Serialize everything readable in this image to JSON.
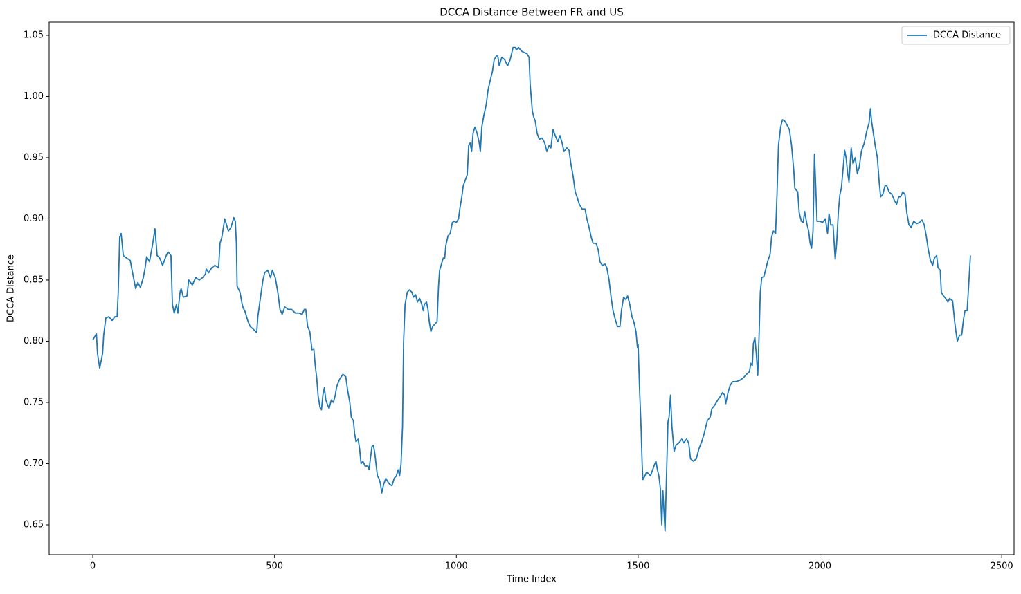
{
  "chart_data": {
    "type": "line",
    "title": "DCCA Distance Between FR and US",
    "x_label": "Time Index",
    "y_label": "DCCA Distance",
    "xlim": [
      -120,
      2534
    ],
    "ylim": [
      0.6257,
      1.0607
    ],
    "xticks": [
      0,
      500,
      1000,
      1500,
      2000,
      2500
    ],
    "yticks": [
      0.65,
      {
        "value": 0.7,
        "label": "0.70"
      },
      0.75,
      {
        "value": 0.8,
        "label": "0.80"
      },
      0.85,
      {
        "value": 0.9,
        "label": "0.90"
      },
      0.95,
      {
        "value": 1.0,
        "label": "1.00"
      },
      1.05
    ],
    "legend": "upper right",
    "x": [
      0,
      6,
      10,
      13,
      19,
      27,
      30,
      36,
      44,
      53,
      61,
      67,
      70,
      74,
      78,
      84,
      93,
      103,
      110,
      118,
      124,
      131,
      139,
      144,
      148,
      156,
      165,
      171,
      177,
      184,
      192,
      202,
      207,
      215,
      219,
      224,
      230,
      234,
      240,
      243,
      249,
      259,
      264,
      274,
      283,
      293,
      302,
      310,
      312,
      319,
      327,
      336,
      346,
      350,
      355,
      363,
      373,
      380,
      388,
      392,
      395,
      397,
      405,
      411,
      414,
      418,
      426,
      433,
      441,
      451,
      454,
      460,
      468,
      473,
      481,
      489,
      494,
      502,
      509,
      515,
      521,
      528,
      538,
      547,
      557,
      567,
      576,
      582,
      586,
      591,
      597,
      603,
      608,
      612,
      616,
      620,
      625,
      629,
      633,
      637,
      641,
      646,
      650,
      656,
      662,
      667,
      671,
      679,
      688,
      696,
      701,
      707,
      711,
      717,
      720,
      724,
      730,
      734,
      738,
      743,
      749,
      757,
      760,
      764,
      768,
      772,
      776,
      779,
      783,
      787,
      791,
      795,
      800,
      806,
      812,
      817,
      823,
      829,
      835,
      840,
      844,
      848,
      852,
      855,
      859,
      865,
      871,
      878,
      882,
      888,
      893,
      899,
      905,
      909,
      912,
      918,
      922,
      926,
      930,
      935,
      941,
      947,
      951,
      954,
      958,
      964,
      968,
      971,
      977,
      983,
      989,
      994,
      1000,
      1006,
      1009,
      1015,
      1019,
      1025,
      1030,
      1034,
      1038,
      1042,
      1046,
      1051,
      1057,
      1063,
      1066,
      1070,
      1076,
      1082,
      1087,
      1093,
      1099,
      1104,
      1110,
      1114,
      1118,
      1125,
      1133,
      1141,
      1148,
      1156,
      1162,
      1165,
      1171,
      1179,
      1186,
      1194,
      1200,
      1203,
      1209,
      1213,
      1217,
      1222,
      1228,
      1236,
      1243,
      1249,
      1255,
      1260,
      1266,
      1272,
      1279,
      1285,
      1291,
      1296,
      1304,
      1310,
      1315,
      1321,
      1327,
      1333,
      1338,
      1346,
      1354,
      1359,
      1365,
      1371,
      1376,
      1384,
      1390,
      1395,
      1401,
      1409,
      1414,
      1420,
      1426,
      1431,
      1437,
      1443,
      1450,
      1454,
      1460,
      1466,
      1471,
      1477,
      1483,
      1488,
      1494,
      1498,
      1500,
      1504,
      1508,
      1511,
      1513,
      1517,
      1523,
      1528,
      1534,
      1540,
      1546,
      1549,
      1553,
      1557,
      1561,
      1565,
      1568,
      1574,
      1578,
      1582,
      1585,
      1589,
      1593,
      1599,
      1604,
      1612,
      1620,
      1625,
      1633,
      1639,
      1644,
      1652,
      1660,
      1667,
      1675,
      1682,
      1690,
      1698,
      1703,
      1711,
      1719,
      1724,
      1732,
      1738,
      1741,
      1747,
      1753,
      1760,
      1768,
      1779,
      1789,
      1798,
      1806,
      1810,
      1814,
      1817,
      1821,
      1825,
      1829,
      1833,
      1836,
      1840,
      1846,
      1852,
      1857,
      1863,
      1867,
      1872,
      1878,
      1882,
      1886,
      1892,
      1897,
      1903,
      1909,
      1916,
      1922,
      1928,
      1931,
      1939,
      1943,
      1949,
      1954,
      1958,
      1964,
      1969,
      1973,
      1977,
      1981,
      1985,
      1988,
      1992,
      2000,
      2007,
      2015,
      2021,
      2025,
      2030,
      2036,
      2042,
      2046,
      2051,
      2055,
      2059,
      2065,
      2068,
      2072,
      2076,
      2080,
      2086,
      2091,
      2097,
      2103,
      2108,
      2114,
      2122,
      2129,
      2135,
      2139,
      2142,
      2146,
      2152,
      2158,
      2163,
      2167,
      2173,
      2179,
      2184,
      2190,
      2198,
      2205,
      2211,
      2217,
      2222,
      2228,
      2234,
      2239,
      2245,
      2251,
      2258,
      2266,
      2274,
      2281,
      2287,
      2293,
      2298,
      2304,
      2310,
      2315,
      2321,
      2325,
      2331,
      2334,
      2340,
      2346,
      2352,
      2357,
      2365,
      2371,
      2374,
      2378,
      2384,
      2390,
      2395,
      2399,
      2405,
      2409,
      2412,
      2414
    ],
    "series": [
      {
        "name": "DCCA Distance",
        "color": "#1f77b4",
        "values": [
          0.801,
          0.804,
          0.806,
          0.79,
          0.778,
          0.79,
          0.805,
          0.819,
          0.82,
          0.817,
          0.82,
          0.82,
          0.84,
          0.885,
          0.888,
          0.87,
          0.868,
          0.866,
          0.855,
          0.843,
          0.848,
          0.844,
          0.852,
          0.86,
          0.869,
          0.865,
          0.88,
          0.892,
          0.87,
          0.868,
          0.862,
          0.87,
          0.873,
          0.87,
          0.83,
          0.823,
          0.83,
          0.823,
          0.84,
          0.843,
          0.836,
          0.837,
          0.85,
          0.846,
          0.852,
          0.85,
          0.852,
          0.855,
          0.859,
          0.856,
          0.86,
          0.862,
          0.86,
          0.88,
          0.885,
          0.9,
          0.89,
          0.893,
          0.901,
          0.898,
          0.88,
          0.845,
          0.84,
          0.83,
          0.827,
          0.825,
          0.817,
          0.812,
          0.81,
          0.807,
          0.82,
          0.833,
          0.85,
          0.856,
          0.858,
          0.852,
          0.858,
          0.852,
          0.84,
          0.826,
          0.822,
          0.828,
          0.826,
          0.826,
          0.823,
          0.823,
          0.822,
          0.826,
          0.826,
          0.812,
          0.808,
          0.793,
          0.794,
          0.78,
          0.77,
          0.755,
          0.746,
          0.744,
          0.756,
          0.762,
          0.752,
          0.748,
          0.745,
          0.752,
          0.75,
          0.756,
          0.763,
          0.769,
          0.773,
          0.771,
          0.76,
          0.75,
          0.738,
          0.735,
          0.725,
          0.718,
          0.72,
          0.712,
          0.7,
          0.702,
          0.698,
          0.698,
          0.695,
          0.705,
          0.714,
          0.715,
          0.708,
          0.7,
          0.69,
          0.688,
          0.684,
          0.676,
          0.683,
          0.688,
          0.685,
          0.683,
          0.682,
          0.688,
          0.69,
          0.695,
          0.69,
          0.7,
          0.73,
          0.8,
          0.83,
          0.84,
          0.842,
          0.84,
          0.836,
          0.838,
          0.832,
          0.835,
          0.83,
          0.825,
          0.83,
          0.832,
          0.826,
          0.815,
          0.808,
          0.812,
          0.814,
          0.816,
          0.845,
          0.858,
          0.862,
          0.868,
          0.868,
          0.878,
          0.886,
          0.888,
          0.897,
          0.898,
          0.897,
          0.9,
          0.907,
          0.918,
          0.927,
          0.932,
          0.936,
          0.96,
          0.962,
          0.955,
          0.97,
          0.975,
          0.97,
          0.962,
          0.955,
          0.975,
          0.985,
          0.993,
          1.005,
          1.013,
          1.02,
          1.03,
          1.033,
          1.033,
          1.025,
          1.032,
          1.03,
          1.025,
          1.03,
          1.04,
          1.04,
          1.038,
          1.04,
          1.037,
          1.036,
          1.035,
          1.032,
          1.01,
          0.988,
          0.983,
          0.98,
          0.97,
          0.965,
          0.966,
          0.962,
          0.955,
          0.96,
          0.958,
          0.973,
          0.968,
          0.963,
          0.968,
          0.962,
          0.955,
          0.958,
          0.956,
          0.945,
          0.935,
          0.922,
          0.917,
          0.912,
          0.908,
          0.908,
          0.9,
          0.893,
          0.885,
          0.88,
          0.88,
          0.875,
          0.865,
          0.862,
          0.863,
          0.86,
          0.85,
          0.835,
          0.825,
          0.818,
          0.812,
          0.812,
          0.825,
          0.836,
          0.834,
          0.837,
          0.83,
          0.82,
          0.816,
          0.808,
          0.795,
          0.797,
          0.76,
          0.73,
          0.7,
          0.687,
          0.689,
          0.693,
          0.692,
          0.69,
          0.695,
          0.7,
          0.702,
          0.695,
          0.69,
          0.68,
          0.65,
          0.678,
          0.645,
          0.69,
          0.734,
          0.738,
          0.756,
          0.73,
          0.71,
          0.715,
          0.717,
          0.72,
          0.717,
          0.72,
          0.717,
          0.704,
          0.702,
          0.704,
          0.712,
          0.718,
          0.725,
          0.735,
          0.738,
          0.745,
          0.748,
          0.752,
          0.754,
          0.758,
          0.756,
          0.749,
          0.758,
          0.764,
          0.767,
          0.767,
          0.768,
          0.77,
          0.773,
          0.775,
          0.782,
          0.78,
          0.798,
          0.803,
          0.79,
          0.772,
          0.808,
          0.84,
          0.852,
          0.853,
          0.86,
          0.866,
          0.871,
          0.885,
          0.89,
          0.888,
          0.92,
          0.96,
          0.975,
          0.981,
          0.98,
          0.977,
          0.973,
          0.96,
          0.94,
          0.925,
          0.922,
          0.905,
          0.898,
          0.897,
          0.906,
          0.896,
          0.89,
          0.88,
          0.876,
          0.89,
          0.953,
          0.93,
          0.898,
          0.898,
          0.897,
          0.9,
          0.888,
          0.904,
          0.895,
          0.895,
          0.867,
          0.88,
          0.907,
          0.92,
          0.925,
          0.945,
          0.956,
          0.95,
          0.938,
          0.93,
          0.958,
          0.945,
          0.95,
          0.937,
          0.942,
          0.955,
          0.962,
          0.972,
          0.978,
          0.99,
          0.98,
          0.972,
          0.96,
          0.95,
          0.93,
          0.918,
          0.92,
          0.927,
          0.927,
          0.922,
          0.92,
          0.915,
          0.912,
          0.918,
          0.918,
          0.922,
          0.92,
          0.905,
          0.895,
          0.893,
          0.898,
          0.896,
          0.897,
          0.899,
          0.895,
          0.885,
          0.875,
          0.866,
          0.862,
          0.868,
          0.87,
          0.86,
          0.858,
          0.84,
          0.837,
          0.835,
          0.832,
          0.835,
          0.833,
          0.815,
          0.808,
          0.8,
          0.805,
          0.805,
          0.818,
          0.825,
          0.825,
          0.845,
          0.86,
          0.87
        ]
      }
    ]
  }
}
